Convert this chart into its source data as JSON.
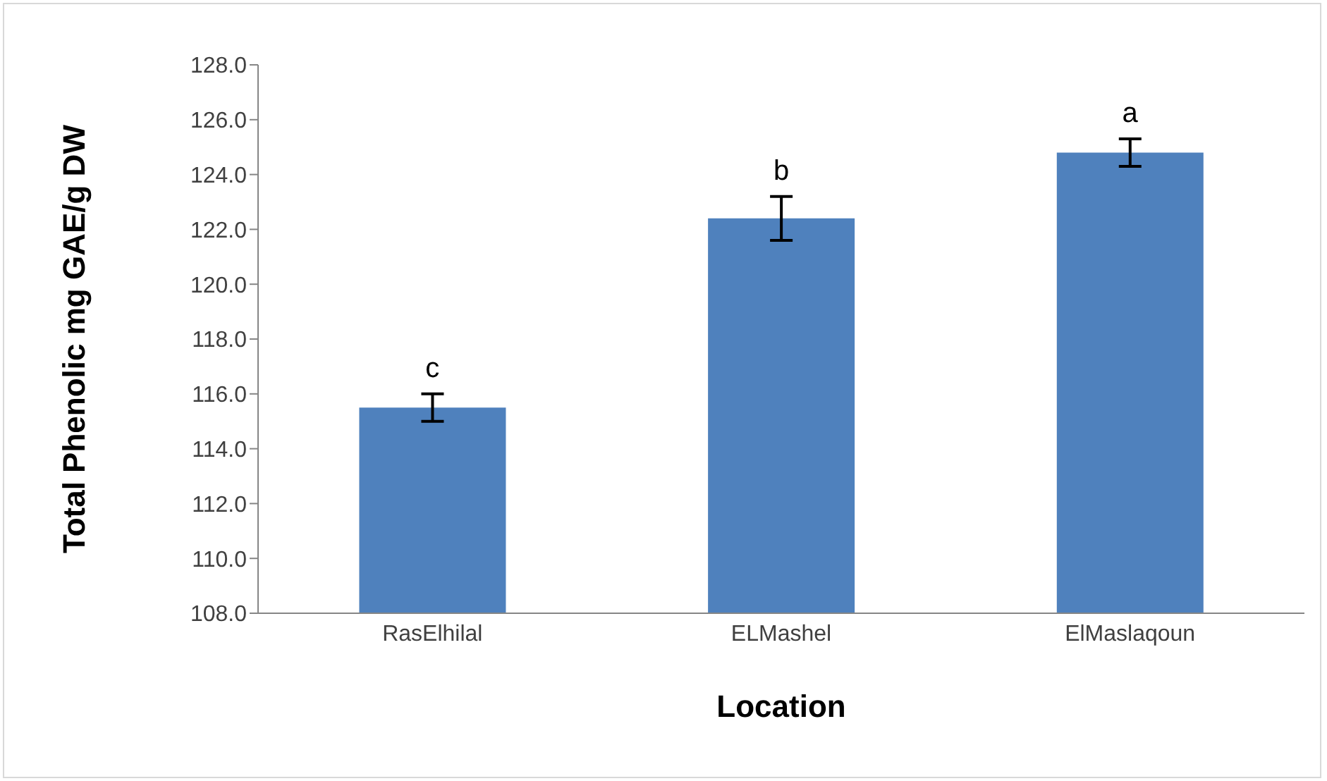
{
  "chart_data": {
    "type": "bar",
    "xlabel": "Location",
    "ylabel": "Total Phenolic mg GAE/g DW",
    "categories": [
      "RasElhilal",
      "ELMashel",
      "ElMaslaqoun"
    ],
    "values": [
      115.5,
      122.4,
      124.8
    ],
    "errors": [
      0.5,
      0.8,
      0.5
    ],
    "color": "#4f81bd",
    "ylim": [
      108,
      128
    ],
    "yticks": [
      {
        "value": 108,
        "label": "108.0"
      },
      {
        "value": 110,
        "label": "110.0"
      },
      {
        "value": 112,
        "label": "112.0"
      },
      {
        "value": 114,
        "label": "114.0"
      },
      {
        "value": 116,
        "label": "116.0"
      },
      {
        "value": 118,
        "label": "118.0"
      },
      {
        "value": 120,
        "label": "120.0"
      },
      {
        "value": 122,
        "label": "122.0"
      },
      {
        "value": 124,
        "label": "124.0"
      },
      {
        "value": 126,
        "label": "126.0"
      },
      {
        "value": 128,
        "label": "128.0"
      }
    ],
    "annotations": [
      {
        "text": "c",
        "x": "RasElhilal",
        "y": 116.0
      },
      {
        "text": "b",
        "x": "ELMashel",
        "y": 123.2
      },
      {
        "text": "a",
        "x": "ElMaslaqoun",
        "y": 125.3
      }
    ],
    "grid": false,
    "legend": false
  }
}
